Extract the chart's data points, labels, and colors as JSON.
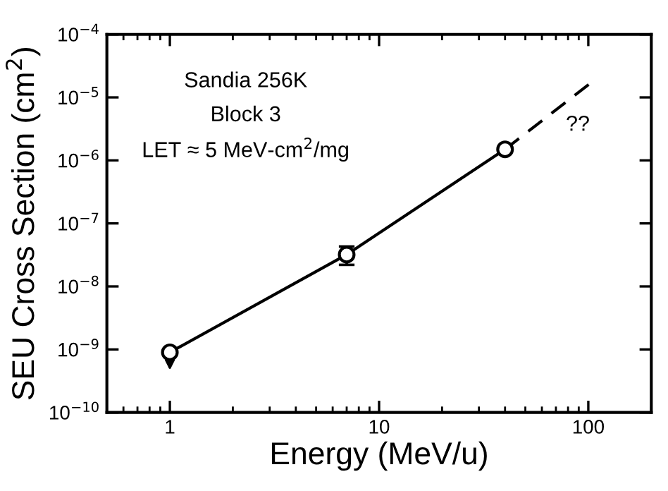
{
  "chart_data": {
    "type": "line",
    "xlabel": "Energy (MeV/u)",
    "ylabel": "SEU Cross Section (cm$^{2}$)",
    "log": "xy",
    "xlim": [
      0.5,
      200
    ],
    "ylim": [
      1e-10,
      0.0001
    ],
    "xticks": [
      1,
      10,
      100
    ],
    "yticks": [
      {
        "value": 1e-10,
        "label": "10$^{−10}$"
      },
      {
        "value": 1e-09,
        "label": "10$^{−9}$"
      },
      {
        "value": 1e-08,
        "label": "10$^{−8}$"
      },
      {
        "value": 1e-07,
        "label": "10$^{−7}$"
      },
      {
        "value": 1e-06,
        "label": "10$^{−6}$"
      },
      {
        "value": 1e-05,
        "label": "10$^{−5}$"
      },
      {
        "value": 0.0001,
        "label": "10$^{−4}$"
      }
    ],
    "grid": false,
    "series": [
      {
        "color": "#000000",
        "x": [
          1,
          7,
          40
        ],
        "values": [
          9e-10,
          3.2e-08,
          1.5e-06
        ],
        "errors": [
          null,
          [
            2.2e-08,
            4.3e-08
          ],
          null
        ],
        "marker": "circle",
        "line_style": "solid"
      },
      {
        "color": "#000000",
        "x": [
          40,
          105
        ],
        "values": [
          1.5e-06,
          1.8e-05
        ],
        "marker": "none",
        "line_style": "dashed"
      }
    ],
    "annotations": [
      "Sandia 256K",
      "Block 3",
      "LET ≈ 5 MeV-cm$^{2}$/mg",
      "??"
    ]
  }
}
